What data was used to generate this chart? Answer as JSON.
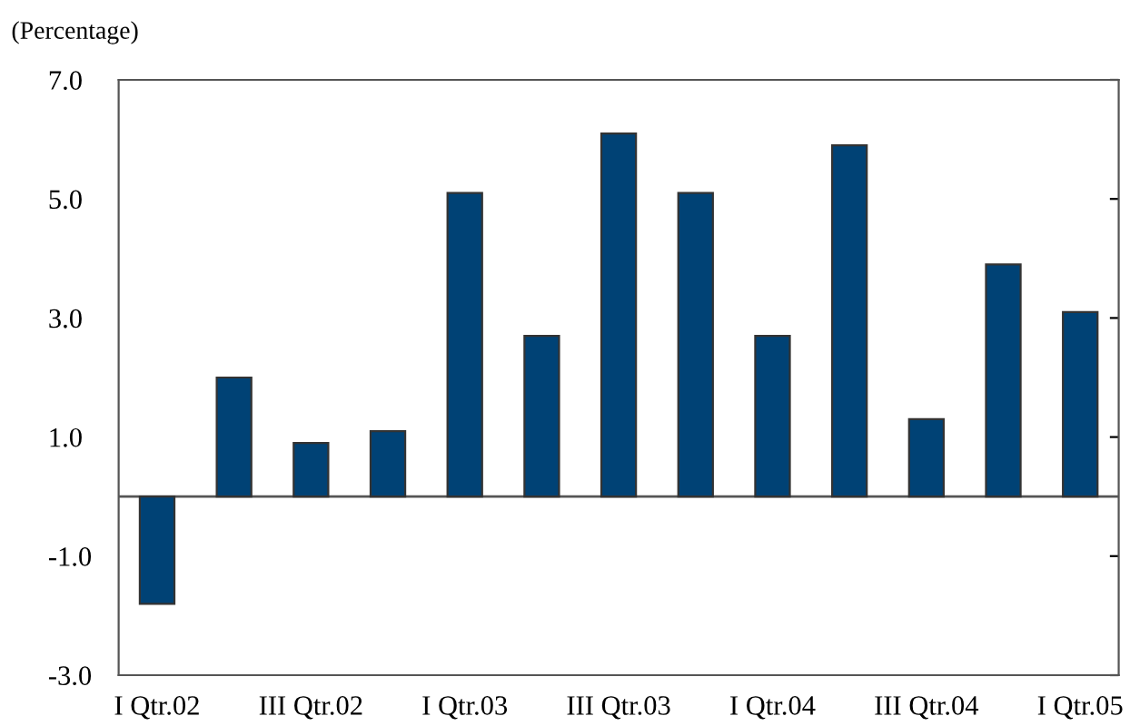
{
  "chart_data": {
    "type": "bar",
    "ylabel": "(Percentage)",
    "categories": [
      "I Qtr.02",
      null,
      "III Qtr.02",
      null,
      "I Qtr.03",
      null,
      "III Qtr.03",
      null,
      "I Qtr.04",
      null,
      "III Qtr.04",
      null,
      "I Qtr.05"
    ],
    "values": [
      -1.8,
      2.0,
      0.9,
      1.1,
      5.1,
      2.7,
      6.1,
      5.1,
      2.7,
      5.9,
      1.3,
      3.9,
      3.1
    ],
    "color": "#004275",
    "ylim": [
      -3.0,
      7.0
    ],
    "yticks": [
      {
        "value": -3.0,
        "label": "-3.0"
      },
      {
        "value": -1.0,
        "label": "-1.0"
      },
      {
        "value": 1.0,
        "label": "1.0"
      },
      {
        "value": 3.0,
        "label": "3.0"
      },
      {
        "value": 5.0,
        "label": "5.0"
      },
      {
        "value": 7.0,
        "label": "7.0"
      }
    ],
    "grid": false,
    "legend": false
  }
}
